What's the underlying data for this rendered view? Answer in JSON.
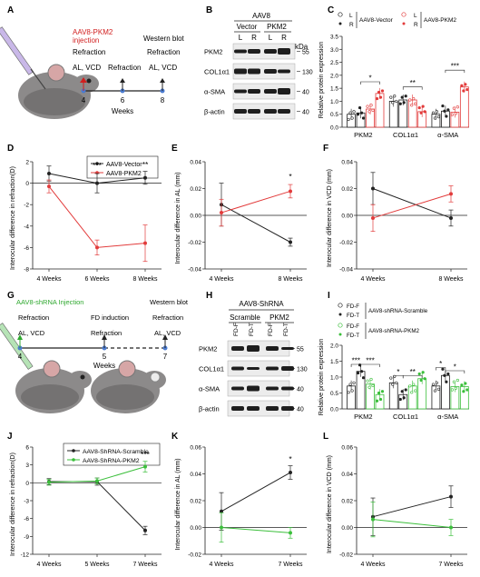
{
  "panel_labels": [
    "A",
    "B",
    "C",
    "D",
    "E",
    "F",
    "G",
    "H",
    "I",
    "J",
    "K",
    "L"
  ],
  "panel_A": {
    "injection": [
      "AAV8-PKM2",
      "injection"
    ],
    "refraction_left": "Refraction",
    "al_vcd_left": "AL, VCD",
    "refraction_mid": "Refraction",
    "western": "Western blot",
    "refraction_right": "Refraction",
    "al_vcd_right": "AL, VCD",
    "ticks": [
      "4",
      "6",
      "8"
    ],
    "axis_label": "Weeks",
    "colors": {
      "accent": "#d11f1f",
      "timeline": "#222222",
      "point": "#4a7bd0"
    }
  },
  "panel_B": {
    "title": "AAV8",
    "groups": [
      "Vector",
      "PKM2"
    ],
    "lanes": [
      "L",
      "R",
      "L",
      "R"
    ],
    "kda": "kDa",
    "rows": [
      {
        "name": "PKM2",
        "marker": "55"
      },
      {
        "name": "COL1α1",
        "marker": "130"
      },
      {
        "name": "α-SMA",
        "marker": "40"
      },
      {
        "name": "β-actin",
        "marker": "40"
      }
    ]
  },
  "panel_C": {
    "legend": {
      "L": "L",
      "R": "R",
      "vector": "AAV8-Vector",
      "pkm2": "AAV8-PKM2"
    },
    "ylabel": "Relative protein expression",
    "yticks": [
      "0.0",
      "0.5",
      "1.0",
      "1.5",
      "2.0",
      "2.5",
      "3.0",
      "3.5"
    ],
    "categories": [
      "PKM2",
      "COL1α1",
      "α-SMA"
    ],
    "sig": [
      "*",
      "**",
      "***"
    ],
    "colors": {
      "vector": "#222222",
      "pkm2": "#e23b3b"
    }
  },
  "panel_D": {
    "ylabel": "Interocular difference in refraction(D)",
    "legend": [
      "AAV8-Vector",
      "AAV8-PKM2"
    ],
    "yticks": [
      "2",
      "0",
      "-2",
      "-4",
      "-6",
      "-8"
    ],
    "xticks": [
      "4 Weeks",
      "6 Weeks",
      "8 Weeks"
    ],
    "sig": [
      "***",
      "**"
    ]
  },
  "panel_E": {
    "ylabel": "Interocular difference in AL (mm)",
    "yticks": [
      "0.04",
      "0.02",
      "0.00",
      "-0.02",
      "-0.04"
    ],
    "xticks": [
      "4 Weeks",
      "8 Weeks"
    ],
    "sig": [
      "*"
    ]
  },
  "panel_F": {
    "ylabel": "Interocular difference in VCD (mm)",
    "yticks": [
      "0.04",
      "0.02",
      "0.00",
      "-0.02",
      "-0.04"
    ],
    "xticks": [
      "4 Weeks",
      "8 Weeks"
    ]
  },
  "panel_G": {
    "injection": "AAV8-shRNA Injection",
    "refraction_left": "Refraction",
    "al_vcd_left": "AL, VCD",
    "fd_induction": "FD induction",
    "refraction_mid": "Refraction",
    "western": "Western blot",
    "refraction_right": "Refraction",
    "al_vcd_right": "AL, VCD",
    "ticks": [
      "4",
      "5",
      "7"
    ],
    "axis_label": "Weeks",
    "colors": {
      "accent": "#2fa82f"
    }
  },
  "panel_H": {
    "title": "AAV8-ShRNA",
    "groups": [
      "Scramble",
      "PKM2"
    ],
    "lanes": [
      "FD-F",
      "FD-T",
      "FD-F",
      "FD-T"
    ],
    "rows": [
      {
        "name": "PKM2",
        "marker": "55"
      },
      {
        "name": "COL1α1",
        "marker": "130"
      },
      {
        "name": "α-SMA",
        "marker": "40"
      },
      {
        "name": "β-actin",
        "marker": "40"
      }
    ]
  },
  "panel_I": {
    "legend": {
      "fdf": "FD-F",
      "fdt": "FD-T",
      "scramble": "AAV8-shRNA-Scramble",
      "pkm2": "AAV8-shRNA-PKM2"
    },
    "ylabel": "Relative protein expression",
    "yticks": [
      "0.0",
      "0.5",
      "1.0",
      "1.5",
      "2.0"
    ],
    "categories": [
      "PKM2",
      "COL1α1",
      "α-SMA"
    ],
    "sig": [
      "***",
      "***",
      "*",
      "**",
      "*",
      "*"
    ],
    "colors": {
      "scramble": "#222222",
      "pkm2": "#3bbf3b"
    }
  },
  "panel_J": {
    "ylabel": "Interocular difference in refraction(D)",
    "legend": [
      "AAV8-ShRNA-Scramble",
      "AAV8-ShRNA-PKM2"
    ],
    "yticks": [
      "6",
      "3",
      "0",
      "-3",
      "-6",
      "-9",
      "-12"
    ],
    "xticks": [
      "4 Weeks",
      "5 Weeks",
      "7 Weeks"
    ],
    "sig": [
      "***"
    ]
  },
  "panel_K": {
    "ylabel": "Interocular difference in AL (mm)",
    "yticks": [
      "0.06",
      "0.04",
      "0.02",
      "0.00",
      "-0.02"
    ],
    "xticks": [
      "4 Weeks",
      "7 Weeks"
    ],
    "sig": [
      "*"
    ]
  },
  "panel_L": {
    "ylabel": "Interocular difference in VCD (mm)",
    "yticks": [
      "0.06",
      "0.04",
      "0.02",
      "0.00",
      "-0.02"
    ],
    "xticks": [
      "4 Weeks",
      "7 Weeks"
    ]
  },
  "chart_data": [
    {
      "id": "C",
      "type": "bar",
      "categories": [
        "PKM2",
        "COL1α1",
        "α-SMA"
      ],
      "series": [
        {
          "name": "AAV8-Vector L",
          "values": [
            0.5,
            1.0,
            0.5
          ]
        },
        {
          "name": "AAV8-Vector R",
          "values": [
            0.55,
            1.05,
            0.62
          ]
        },
        {
          "name": "AAV8-PKM2 L",
          "values": [
            0.7,
            1.05,
            0.58
          ]
        },
        {
          "name": "AAV8-PKM2 R",
          "values": [
            1.3,
            0.6,
            1.55
          ]
        }
      ],
      "ylim": [
        0,
        3.5
      ]
    },
    {
      "id": "D",
      "type": "line",
      "x": [
        "4 Weeks",
        "6 Weeks",
        "8 Weeks"
      ],
      "series": [
        {
          "name": "AAV8-Vector",
          "values": [
            0.9,
            0.0,
            0.5
          ],
          "err": [
            0.7,
            0.9,
            0.6
          ]
        },
        {
          "name": "AAV8-PKM2",
          "values": [
            -0.3,
            -6.0,
            -5.6
          ],
          "err": [
            0.6,
            0.7,
            1.7
          ]
        }
      ],
      "ylim": [
        -8,
        2
      ]
    },
    {
      "id": "E",
      "type": "line",
      "x": [
        "4 Weeks",
        "8 Weeks"
      ],
      "series": [
        {
          "name": "AAV8-Vector",
          "values": [
            0.008,
            -0.02
          ],
          "err": [
            0.016,
            0.003
          ]
        },
        {
          "name": "AAV8-PKM2",
          "values": [
            0.002,
            0.018
          ],
          "err": [
            0.01,
            0.005
          ]
        }
      ],
      "ylim": [
        -0.04,
        0.04
      ]
    },
    {
      "id": "F",
      "type": "line",
      "x": [
        "4 Weeks",
        "8 Weeks"
      ],
      "series": [
        {
          "name": "AAV8-Vector",
          "values": [
            0.02,
            -0.002
          ],
          "err": [
            0.012,
            0.006
          ]
        },
        {
          "name": "AAV8-PKM2",
          "values": [
            -0.002,
            0.016
          ],
          "err": [
            0.01,
            0.006
          ]
        }
      ],
      "ylim": [
        -0.04,
        0.04
      ]
    },
    {
      "id": "I",
      "type": "bar",
      "categories": [
        "PKM2",
        "COL1α1",
        "α-SMA"
      ],
      "series": [
        {
          "name": "Scramble FD-F",
          "values": [
            0.72,
            0.82,
            0.72
          ]
        },
        {
          "name": "Scramble FD-T",
          "values": [
            1.18,
            0.45,
            1.05
          ]
        },
        {
          "name": "PKM2 FD-F",
          "values": [
            0.78,
            0.72,
            0.7
          ]
        },
        {
          "name": "PKM2 FD-T",
          "values": [
            0.45,
            0.95,
            0.7
          ]
        }
      ],
      "ylim": [
        0,
        2
      ]
    },
    {
      "id": "J",
      "type": "line",
      "x": [
        "4 Weeks",
        "5 Weeks",
        "7 Weeks"
      ],
      "series": [
        {
          "name": "AAV8-ShRNA-Scramble",
          "values": [
            0.2,
            0.2,
            -8.0
          ],
          "err": [
            0.5,
            0.6,
            0.7
          ]
        },
        {
          "name": "AAV8-ShRNA-PKM2",
          "values": [
            0.1,
            0.3,
            2.7
          ],
          "err": [
            0.5,
            0.5,
            0.9
          ]
        }
      ],
      "ylim": [
        -12,
        6
      ]
    },
    {
      "id": "K",
      "type": "line",
      "x": [
        "4 Weeks",
        "7 Weeks"
      ],
      "series": [
        {
          "name": "AAV8-ShRNA-Scramble",
          "values": [
            0.012,
            0.041
          ],
          "err": [
            0.014,
            0.005
          ]
        },
        {
          "name": "AAV8-ShRNA-PKM2",
          "values": [
            0.0,
            -0.004
          ],
          "err": [
            0.011,
            0.004
          ]
        }
      ],
      "ylim": [
        -0.02,
        0.06
      ]
    },
    {
      "id": "L",
      "type": "line",
      "x": [
        "4 Weeks",
        "7 Weeks"
      ],
      "series": [
        {
          "name": "AAV8-ShRNA-Scramble",
          "values": [
            0.008,
            0.023
          ],
          "err": [
            0.014,
            0.008
          ]
        },
        {
          "name": "AAV8-ShRNA-PKM2",
          "values": [
            0.006,
            0.0
          ],
          "err": [
            0.013,
            0.006
          ]
        }
      ],
      "ylim": [
        -0.02,
        0.06
      ]
    }
  ]
}
